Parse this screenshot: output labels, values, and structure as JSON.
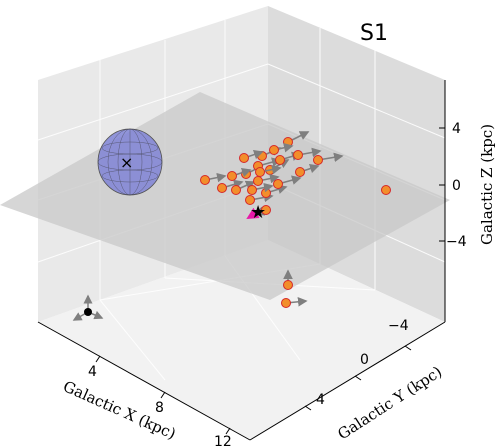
{
  "chart_data": {
    "type": "scatter3d",
    "title": "S1",
    "xlabel": "Galactic X (kpc)",
    "ylabel": "Galactic Y (kpc)",
    "zlabel": "Galactic Z (kpc)",
    "x_ticks": [
      "4",
      "8",
      "12"
    ],
    "y_ticks": [
      "−4",
      "0",
      "4"
    ],
    "z_ticks": [
      "4",
      "0",
      "−4"
    ],
    "grid": true,
    "plane": "galactic plane z = 0",
    "colors": {
      "point_fill": "#f28e2b",
      "point_edge": "#d62728",
      "arrow": "#7f7f7f",
      "sun_marker": "#000000",
      "sun_arrow": "#e61aa8",
      "ellipsoid": "#7b7fd6",
      "plane": "#c8c8c8"
    },
    "markers": {
      "center": "x",
      "sun": "star",
      "origin": "black dot with axis arrows"
    },
    "points_note": "Approximately 25 orange points with gray velocity arrows"
  }
}
